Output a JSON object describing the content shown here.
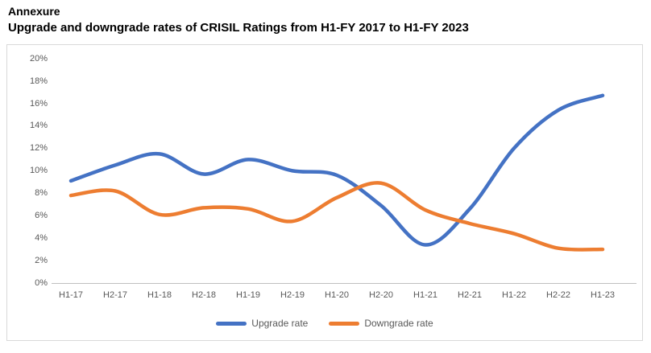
{
  "header": {
    "title": "Annexure",
    "subtitle": "Upgrade and downgrade rates of CRISIL Ratings from H1-FY 2017 to H1-FY 2023"
  },
  "chart_data": {
    "type": "line",
    "title": "Upgrade and downgrade rates of CRISIL Ratings from H1-FY 2017 to H1-FY 2023",
    "categories": [
      "H1-17",
      "H2-17",
      "H1-18",
      "H2-18",
      "H1-19",
      "H2-19",
      "H1-20",
      "H2-20",
      "H1-21",
      "H2-21",
      "H1-22",
      "H2-22",
      "H1-23"
    ],
    "series": [
      {
        "name": "Upgrade rate",
        "color": "#4472C4",
        "values": [
          9.1,
          10.5,
          11.5,
          9.7,
          11.0,
          10.0,
          9.6,
          6.9,
          3.4,
          6.6,
          12.0,
          15.4,
          16.7
        ]
      },
      {
        "name": "Downgrade rate",
        "color": "#ED7D31",
        "values": [
          7.8,
          8.2,
          6.1,
          6.7,
          6.6,
          5.5,
          7.6,
          8.9,
          6.5,
          5.3,
          4.4,
          3.1,
          3.0
        ]
      }
    ],
    "xlabel": "",
    "ylabel": "",
    "ylim": [
      0,
      20
    ],
    "y_tick_step": 2,
    "y_ticks": [
      "0%",
      "2%",
      "4%",
      "6%",
      "8%",
      "10%",
      "12%",
      "14%",
      "16%",
      "18%",
      "20%"
    ],
    "grid": "off",
    "legend_position": "bottom",
    "line_smoothing": true,
    "axis_line_color": "#bfbfbf",
    "tick_label_color": "#595959"
  }
}
